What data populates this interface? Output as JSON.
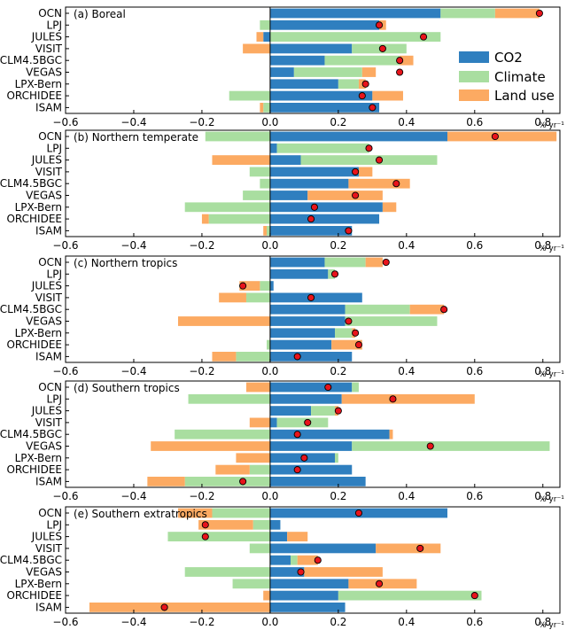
{
  "figure": {
    "unit_label": "% yr⁻¹",
    "x_ticks": [
      -0.6,
      -0.4,
      -0.2,
      0.0,
      0.2,
      0.4,
      0.6,
      0.8
    ],
    "x_tick_labels": [
      "−0.6",
      "−0.4",
      "−0.2",
      "0.0",
      "0.2",
      "0.4",
      "0.6",
      "0.8"
    ],
    "xlim": [
      -0.6,
      0.85
    ],
    "models": [
      "OCN",
      "LPJ",
      "JULES",
      "VISIT",
      "CLM4.5BGC",
      "VEGAS",
      "LPX-Bern",
      "ORCHIDEE",
      "ISAM"
    ],
    "colors": {
      "CO2": "#2f7fbf",
      "Climate": "#a9dea0",
      "Land use": "#fcaa62",
      "dot": "#e8141b"
    }
  },
  "legend": {
    "entries": [
      {
        "name": "CO2",
        "color_key": "CO2"
      },
      {
        "name": "Climate",
        "color_key": "Climate"
      },
      {
        "name": "Land use",
        "color_key": "Land use"
      }
    ]
  },
  "chart_data": [
    {
      "type": "bar",
      "title": "(a) Boreal",
      "categories": [
        "OCN",
        "LPJ",
        "JULES",
        "VISIT",
        "CLM4.5BGC",
        "VEGAS",
        "LPX-Bern",
        "ORCHIDEE",
        "ISAM"
      ],
      "series": [
        {
          "name": "CO2",
          "values": [
            0.5,
            0.32,
            -0.02,
            0.24,
            0.16,
            0.07,
            0.2,
            0.3,
            0.32
          ]
        },
        {
          "name": "Climate",
          "values": [
            0.16,
            -0.03,
            0.5,
            0.16,
            0.22,
            0.2,
            0.06,
            -0.12,
            -0.02
          ]
        },
        {
          "name": "Land use",
          "values": [
            0.13,
            0.02,
            -0.02,
            -0.08,
            0.04,
            0.04,
            0.02,
            0.09,
            -0.01
          ]
        }
      ],
      "net": [
        0.79,
        0.32,
        0.45,
        0.33,
        0.38,
        0.38,
        0.28,
        0.27,
        0.3
      ],
      "xlim": [
        -0.6,
        0.85
      ]
    },
    {
      "type": "bar",
      "title": "(b) Northern  temperate",
      "categories": [
        "OCN",
        "LPJ",
        "JULES",
        "VISIT",
        "CLM4.5BGC",
        "VEGAS",
        "LPX-Bern",
        "ORCHIDEE",
        "ISAM"
      ],
      "series": [
        {
          "name": "CO2",
          "values": [
            0.52,
            0.02,
            0.09,
            0.26,
            0.23,
            0.11,
            0.33,
            0.32,
            0.24
          ]
        },
        {
          "name": "Climate",
          "values": [
            -0.19,
            0.27,
            0.4,
            -0.06,
            -0.03,
            -0.08,
            -0.25,
            -0.18,
            -0.01
          ]
        },
        {
          "name": "Land use",
          "values": [
            0.32,
            0.0,
            -0.17,
            0.04,
            0.18,
            0.22,
            0.04,
            -0.02,
            -0.01
          ]
        }
      ],
      "net": [
        0.66,
        0.29,
        0.32,
        0.25,
        0.37,
        0.25,
        0.13,
        0.12,
        0.23
      ],
      "xlim": [
        -0.6,
        0.85
      ]
    },
    {
      "type": "bar",
      "title": "(c) Northern  tropics",
      "categories": [
        "OCN",
        "LPJ",
        "JULES",
        "VISIT",
        "CLM4.5BGC",
        "VEGAS",
        "LPX-Bern",
        "ORCHIDEE",
        "ISAM"
      ],
      "series": [
        {
          "name": "CO2",
          "values": [
            0.16,
            0.17,
            0.01,
            0.27,
            0.22,
            0.22,
            0.19,
            0.18,
            0.24
          ]
        },
        {
          "name": "Climate",
          "values": [
            0.12,
            0.02,
            -0.03,
            -0.07,
            0.19,
            0.27,
            0.05,
            -0.01,
            -0.1
          ]
        },
        {
          "name": "Land use",
          "values": [
            0.05,
            0.0,
            -0.06,
            -0.08,
            0.1,
            -0.27,
            0.01,
            0.09,
            -0.07
          ]
        }
      ],
      "net": [
        0.34,
        0.19,
        -0.08,
        0.12,
        0.51,
        0.23,
        0.25,
        0.26,
        0.08
      ],
      "xlim": [
        -0.6,
        0.85
      ]
    },
    {
      "type": "bar",
      "title": "(d) Southern  tropics",
      "categories": [
        "OCN",
        "LPJ",
        "JULES",
        "VISIT",
        "CLM4.5BGC",
        "VEGAS",
        "LPX-Bern",
        "ORCHIDEE",
        "ISAM"
      ],
      "series": [
        {
          "name": "CO2",
          "values": [
            0.24,
            0.21,
            0.12,
            0.02,
            0.35,
            0.24,
            0.19,
            0.24,
            0.28
          ]
        },
        {
          "name": "Climate",
          "values": [
            0.02,
            -0.24,
            0.07,
            0.15,
            -0.28,
            0.58,
            0.01,
            -0.06,
            -0.25
          ]
        },
        {
          "name": "Land use",
          "values": [
            -0.07,
            0.39,
            0.01,
            -0.06,
            0.01,
            -0.35,
            -0.1,
            -0.1,
            -0.11
          ]
        }
      ],
      "net": [
        0.17,
        0.36,
        0.2,
        0.11,
        0.08,
        0.47,
        0.1,
        0.08,
        -0.08
      ],
      "xlim": [
        -0.6,
        0.85
      ]
    },
    {
      "type": "bar",
      "title": "(e) Southern extratropics",
      "categories": [
        "OCN",
        "LPJ",
        "JULES",
        "VISIT",
        "CLM4.5BGC",
        "VEGAS",
        "LPX-Bern",
        "ORCHIDEE",
        "ISAM"
      ],
      "series": [
        {
          "name": "CO2",
          "values": [
            0.52,
            0.03,
            0.05,
            0.31,
            0.06,
            0.1,
            0.23,
            0.2,
            0.22
          ]
        },
        {
          "name": "Climate",
          "values": [
            -0.17,
            -0.05,
            -0.3,
            -0.06,
            0.02,
            -0.25,
            -0.11,
            0.42,
            0.0
          ]
        },
        {
          "name": "Land use",
          "values": [
            -0.1,
            -0.16,
            0.06,
            0.19,
            0.06,
            0.23,
            0.2,
            -0.02,
            -0.53
          ]
        }
      ],
      "net": [
        0.26,
        -0.19,
        -0.19,
        0.44,
        0.14,
        0.09,
        0.32,
        0.6,
        -0.31
      ],
      "xlim": [
        -0.6,
        0.85
      ]
    }
  ]
}
